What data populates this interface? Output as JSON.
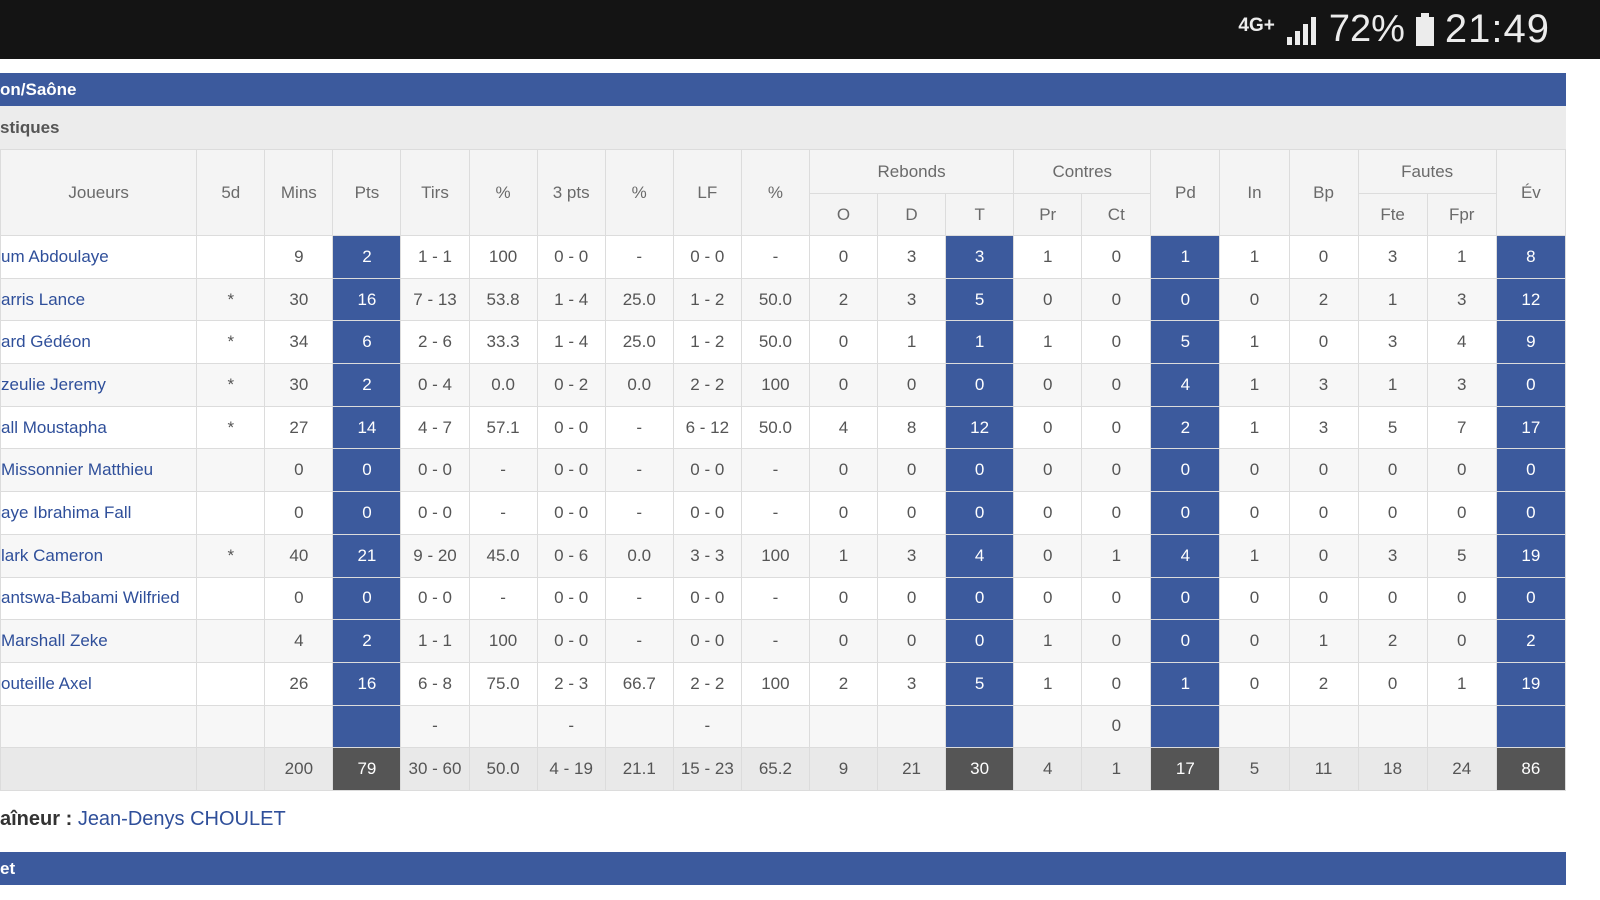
{
  "status_bar": {
    "network": "4G+",
    "signal_icon": "signal-bars-icon",
    "battery_percent": "72%",
    "battery_icon": "battery-icon",
    "time": "21:49"
  },
  "team_title": "on/Saône",
  "section_title": "stiques",
  "headers": {
    "players": "Joueurs",
    "five": "5d",
    "mins": "Mins",
    "pts": "Pts",
    "tirs": "Tirs",
    "pct1": "%",
    "three": "3 pts",
    "pct2": "%",
    "lf": "LF",
    "pct3": "%",
    "rebonds": "Rebonds",
    "reb_o": "O",
    "reb_d": "D",
    "reb_t": "T",
    "contres": "Contres",
    "contres_pr": "Pr",
    "contres_ct": "Ct",
    "pd": "Pd",
    "in": "In",
    "bp": "Bp",
    "fautes": "Fautes",
    "fautes_fte": "Fte",
    "fautes_fpr": "Fpr",
    "ev": "Év"
  },
  "players": [
    {
      "name": "um Abdoulaye",
      "starter": "",
      "mins": "9",
      "pts": "2",
      "tirs": "1 - 1",
      "pct": "100",
      "three": "0 - 0",
      "pct3": "-",
      "lf": "0 - 0",
      "pctlf": "-",
      "o": "0",
      "d": "3",
      "t": "3",
      "pr": "1",
      "ct": "0",
      "pd": "1",
      "in": "1",
      "bp": "0",
      "fte": "3",
      "fpr": "1",
      "ev": "8"
    },
    {
      "name": "arris Lance",
      "starter": "*",
      "mins": "30",
      "pts": "16",
      "tirs": "7 - 13",
      "pct": "53.8",
      "three": "1 - 4",
      "pct3": "25.0",
      "lf": "1 - 2",
      "pctlf": "50.0",
      "o": "2",
      "d": "3",
      "t": "5",
      "pr": "0",
      "ct": "0",
      "pd": "0",
      "in": "0",
      "bp": "2",
      "fte": "1",
      "fpr": "3",
      "ev": "12"
    },
    {
      "name": "ard Gédéon",
      "starter": "*",
      "mins": "34",
      "pts": "6",
      "tirs": "2 - 6",
      "pct": "33.3",
      "three": "1 - 4",
      "pct3": "25.0",
      "lf": "1 - 2",
      "pctlf": "50.0",
      "o": "0",
      "d": "1",
      "t": "1",
      "pr": "1",
      "ct": "0",
      "pd": "5",
      "in": "1",
      "bp": "0",
      "fte": "3",
      "fpr": "4",
      "ev": "9"
    },
    {
      "name": "zeulie Jeremy",
      "starter": "*",
      "mins": "30",
      "pts": "2",
      "tirs": "0 - 4",
      "pct": "0.0",
      "three": "0 - 2",
      "pct3": "0.0",
      "lf": "2 - 2",
      "pctlf": "100",
      "o": "0",
      "d": "0",
      "t": "0",
      "pr": "0",
      "ct": "0",
      "pd": "4",
      "in": "1",
      "bp": "3",
      "fte": "1",
      "fpr": "3",
      "ev": "0"
    },
    {
      "name": "all Moustapha",
      "starter": "*",
      "mins": "27",
      "pts": "14",
      "tirs": "4 - 7",
      "pct": "57.1",
      "three": "0 - 0",
      "pct3": "-",
      "lf": "6 - 12",
      "pctlf": "50.0",
      "o": "4",
      "d": "8",
      "t": "12",
      "pr": "0",
      "ct": "0",
      "pd": "2",
      "in": "1",
      "bp": "3",
      "fte": "5",
      "fpr": "7",
      "ev": "17"
    },
    {
      "name": "Missonnier Matthieu",
      "starter": "",
      "mins": "0",
      "pts": "0",
      "tirs": "0 - 0",
      "pct": "-",
      "three": "0 - 0",
      "pct3": "-",
      "lf": "0 - 0",
      "pctlf": "-",
      "o": "0",
      "d": "0",
      "t": "0",
      "pr": "0",
      "ct": "0",
      "pd": "0",
      "in": "0",
      "bp": "0",
      "fte": "0",
      "fpr": "0",
      "ev": "0"
    },
    {
      "name": "aye Ibrahima Fall",
      "starter": "",
      "mins": "0",
      "pts": "0",
      "tirs": "0 - 0",
      "pct": "-",
      "three": "0 - 0",
      "pct3": "-",
      "lf": "0 - 0",
      "pctlf": "-",
      "o": "0",
      "d": "0",
      "t": "0",
      "pr": "0",
      "ct": "0",
      "pd": "0",
      "in": "0",
      "bp": "0",
      "fte": "0",
      "fpr": "0",
      "ev": "0"
    },
    {
      "name": "lark Cameron",
      "starter": "*",
      "mins": "40",
      "pts": "21",
      "tirs": "9 - 20",
      "pct": "45.0",
      "three": "0 - 6",
      "pct3": "0.0",
      "lf": "3 - 3",
      "pctlf": "100",
      "o": "1",
      "d": "3",
      "t": "4",
      "pr": "0",
      "ct": "1",
      "pd": "4",
      "in": "1",
      "bp": "0",
      "fte": "3",
      "fpr": "5",
      "ev": "19"
    },
    {
      "name": "antswa-Babami Wilfried",
      "starter": "",
      "mins": "0",
      "pts": "0",
      "tirs": "0 - 0",
      "pct": "-",
      "three": "0 - 0",
      "pct3": "-",
      "lf": "0 - 0",
      "pctlf": "-",
      "o": "0",
      "d": "0",
      "t": "0",
      "pr": "0",
      "ct": "0",
      "pd": "0",
      "in": "0",
      "bp": "0",
      "fte": "0",
      "fpr": "0",
      "ev": "0"
    },
    {
      "name": "Marshall Zeke",
      "starter": "",
      "mins": "4",
      "pts": "2",
      "tirs": "1 - 1",
      "pct": "100",
      "three": "0 - 0",
      "pct3": "-",
      "lf": "0 - 0",
      "pctlf": "-",
      "o": "0",
      "d": "0",
      "t": "0",
      "pr": "1",
      "ct": "0",
      "pd": "0",
      "in": "0",
      "bp": "1",
      "fte": "2",
      "fpr": "0",
      "ev": "2"
    },
    {
      "name": "outeille Axel",
      "starter": "",
      "mins": "26",
      "pts": "16",
      "tirs": "6 - 8",
      "pct": "75.0",
      "three": "2 - 3",
      "pct3": "66.7",
      "lf": "2 - 2",
      "pctlf": "100",
      "o": "2",
      "d": "3",
      "t": "5",
      "pr": "1",
      "ct": "0",
      "pd": "1",
      "in": "0",
      "bp": "2",
      "fte": "0",
      "fpr": "1",
      "ev": "19"
    },
    {
      "name": "",
      "starter": "",
      "mins": "",
      "pts": "",
      "tirs": "-",
      "pct": "",
      "three": "-",
      "pct3": "",
      "lf": "-",
      "pctlf": "",
      "o": "",
      "d": "",
      "t": "",
      "pr": "",
      "ct": "0",
      "pd": "",
      "in": "",
      "bp": "",
      "fte": "",
      "fpr": "",
      "ev": ""
    }
  ],
  "totals": {
    "name": "",
    "starter": "",
    "mins": "200",
    "pts": "79",
    "tirs": "30 - 60",
    "pct": "50.0",
    "three": "4 - 19",
    "pct3": "21.1",
    "lf": "15 - 23",
    "pctlf": "65.2",
    "o": "9",
    "d": "21",
    "t": "30",
    "pr": "4",
    "ct": "1",
    "pd": "17",
    "in": "5",
    "bp": "11",
    "fte": "18",
    "fpr": "24",
    "ev": "86"
  },
  "coach": {
    "label": "aîneur :",
    "name": "Jean-Denys CHOULET"
  },
  "bottom_bar_title": "et",
  "colors": {
    "accent": "#3c5a9d",
    "total_highlight": "#555555",
    "link": "#2f4f9a"
  }
}
